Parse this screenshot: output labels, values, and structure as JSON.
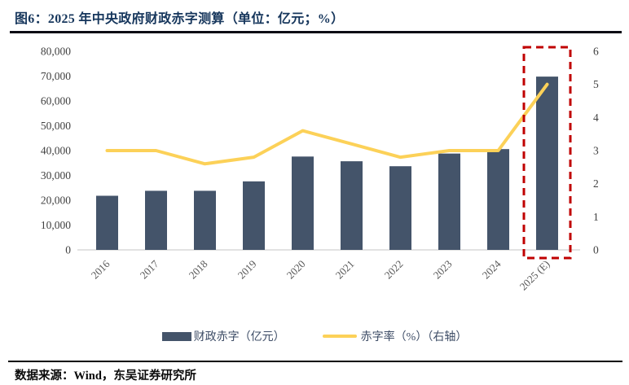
{
  "header": {
    "title": "图6：2025 年中央政府财政赤字测算（单位：亿元；%）"
  },
  "footer": {
    "source": "数据来源：Wind，东吴证券研究所"
  },
  "chart_data": {
    "type": "bar",
    "subtype": "bar-plus-line-dual-axis",
    "title": "2025 年中央政府财政赤字测算（单位：亿元；%）",
    "categories": [
      "2016",
      "2017",
      "2018",
      "2019",
      "2020",
      "2021",
      "2022",
      "2023",
      "2024",
      "2025 (E)"
    ],
    "series": [
      {
        "name": "财政赤字（亿元）",
        "type": "bar",
        "axis": "left",
        "color": "#44546A",
        "values": [
          21800,
          23800,
          23800,
          27600,
          37600,
          35700,
          33700,
          38800,
          40600,
          69800
        ]
      },
      {
        "name": "赤字率（%）（右轴）",
        "type": "line",
        "axis": "right",
        "color": "#FCD158",
        "values": [
          3.0,
          3.0,
          2.6,
          2.8,
          3.6,
          3.2,
          2.8,
          3.0,
          3.0,
          5.0
        ]
      }
    ],
    "left_axis": {
      "min": 0,
      "max": 80000,
      "ticks": [
        "0",
        "10,000",
        "20,000",
        "30,000",
        "40,000",
        "50,000",
        "60,000",
        "70,000",
        "80,000"
      ]
    },
    "right_axis": {
      "min": 0,
      "max": 6,
      "ticks": [
        "0",
        "1",
        "2",
        "3",
        "4",
        "5",
        "6"
      ]
    },
    "grid": "off",
    "legend_position": "bottom",
    "highlight": {
      "category": "2025 (E)",
      "style": "red-dashed-box",
      "color": "#C00000"
    },
    "axis_text_color": "#404040",
    "category_text_color": "#595959",
    "baseline_color": "#D9D9D9"
  }
}
